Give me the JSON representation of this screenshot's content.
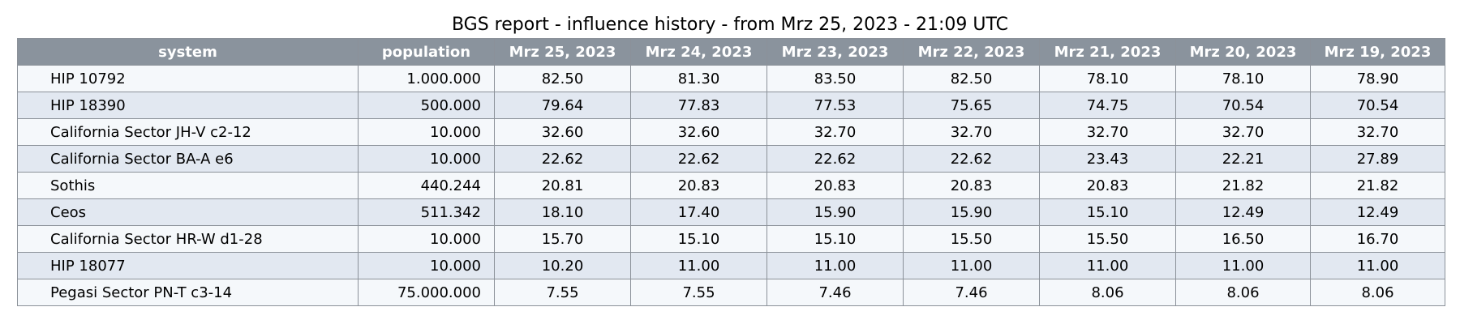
{
  "chart_data": {
    "type": "table",
    "title": "BGS report - influence history - from Mrz 25, 2023 - 21:09 UTC",
    "columns": [
      "system",
      "population",
      "Mrz 25, 2023",
      "Mrz 24, 2023",
      "Mrz 23, 2023",
      "Mrz 22, 2023",
      "Mrz 21, 2023",
      "Mrz 20, 2023",
      "Mrz 19, 2023"
    ],
    "rows": [
      [
        "HIP 10792",
        "1.000.000",
        "82.50",
        "81.30",
        "83.50",
        "82.50",
        "78.10",
        "78.10",
        "78.90"
      ],
      [
        "HIP 18390",
        "500.000",
        "79.64",
        "77.83",
        "77.53",
        "75.65",
        "74.75",
        "70.54",
        "70.54"
      ],
      [
        "California Sector JH-V c2-12",
        "10.000",
        "32.60",
        "32.60",
        "32.70",
        "32.70",
        "32.70",
        "32.70",
        "32.70"
      ],
      [
        "California Sector BA-A e6",
        "10.000",
        "22.62",
        "22.62",
        "22.62",
        "22.62",
        "23.43",
        "22.21",
        "27.89"
      ],
      [
        "Sothis",
        "440.244",
        "20.81",
        "20.83",
        "20.83",
        "20.83",
        "20.83",
        "21.82",
        "21.82"
      ],
      [
        "Ceos",
        "511.342",
        "18.10",
        "17.40",
        "15.90",
        "15.90",
        "15.10",
        "12.49",
        "12.49"
      ],
      [
        "California Sector HR-W d1-28",
        "10.000",
        "15.70",
        "15.10",
        "15.10",
        "15.50",
        "15.50",
        "16.50",
        "16.70"
      ],
      [
        "HIP 18077",
        "10.000",
        "10.20",
        "11.00",
        "11.00",
        "11.00",
        "11.00",
        "11.00",
        "11.00"
      ],
      [
        "Pegasi Sector PN-T c3-14",
        "75.000.000",
        "7.55",
        "7.55",
        "7.46",
        "7.46",
        "8.06",
        "8.06",
        "8.06"
      ]
    ],
    "colors": {
      "header_background": "#8a939d",
      "header_text": "#ffffff",
      "row_odd": "#f5f8fb",
      "row_even": "#e2e8f1",
      "border": "#8b9199"
    }
  }
}
